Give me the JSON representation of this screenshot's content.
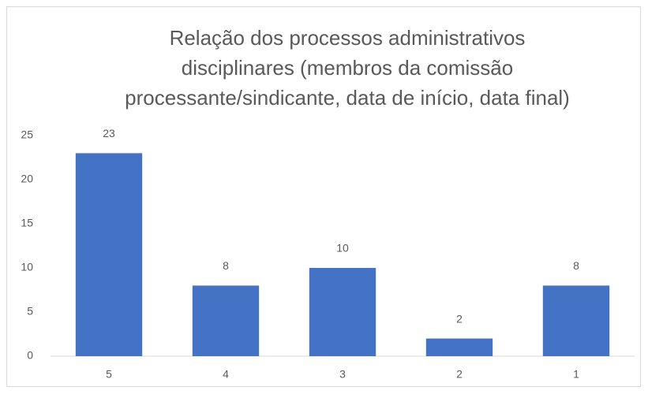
{
  "chart_data": {
    "type": "bar",
    "title": [
      "Relação dos processos administrativos",
      "disciplinares (membros da comissão",
      "processante/sindicante, data de início, data final)"
    ],
    "categories": [
      "5",
      "4",
      "3",
      "2",
      "1"
    ],
    "values": [
      23,
      8,
      10,
      2,
      8
    ],
    "color": "#4472c4",
    "ylim": [
      0,
      25
    ],
    "yticks": [
      0,
      5,
      10,
      15,
      20,
      25
    ],
    "grid": false
  }
}
